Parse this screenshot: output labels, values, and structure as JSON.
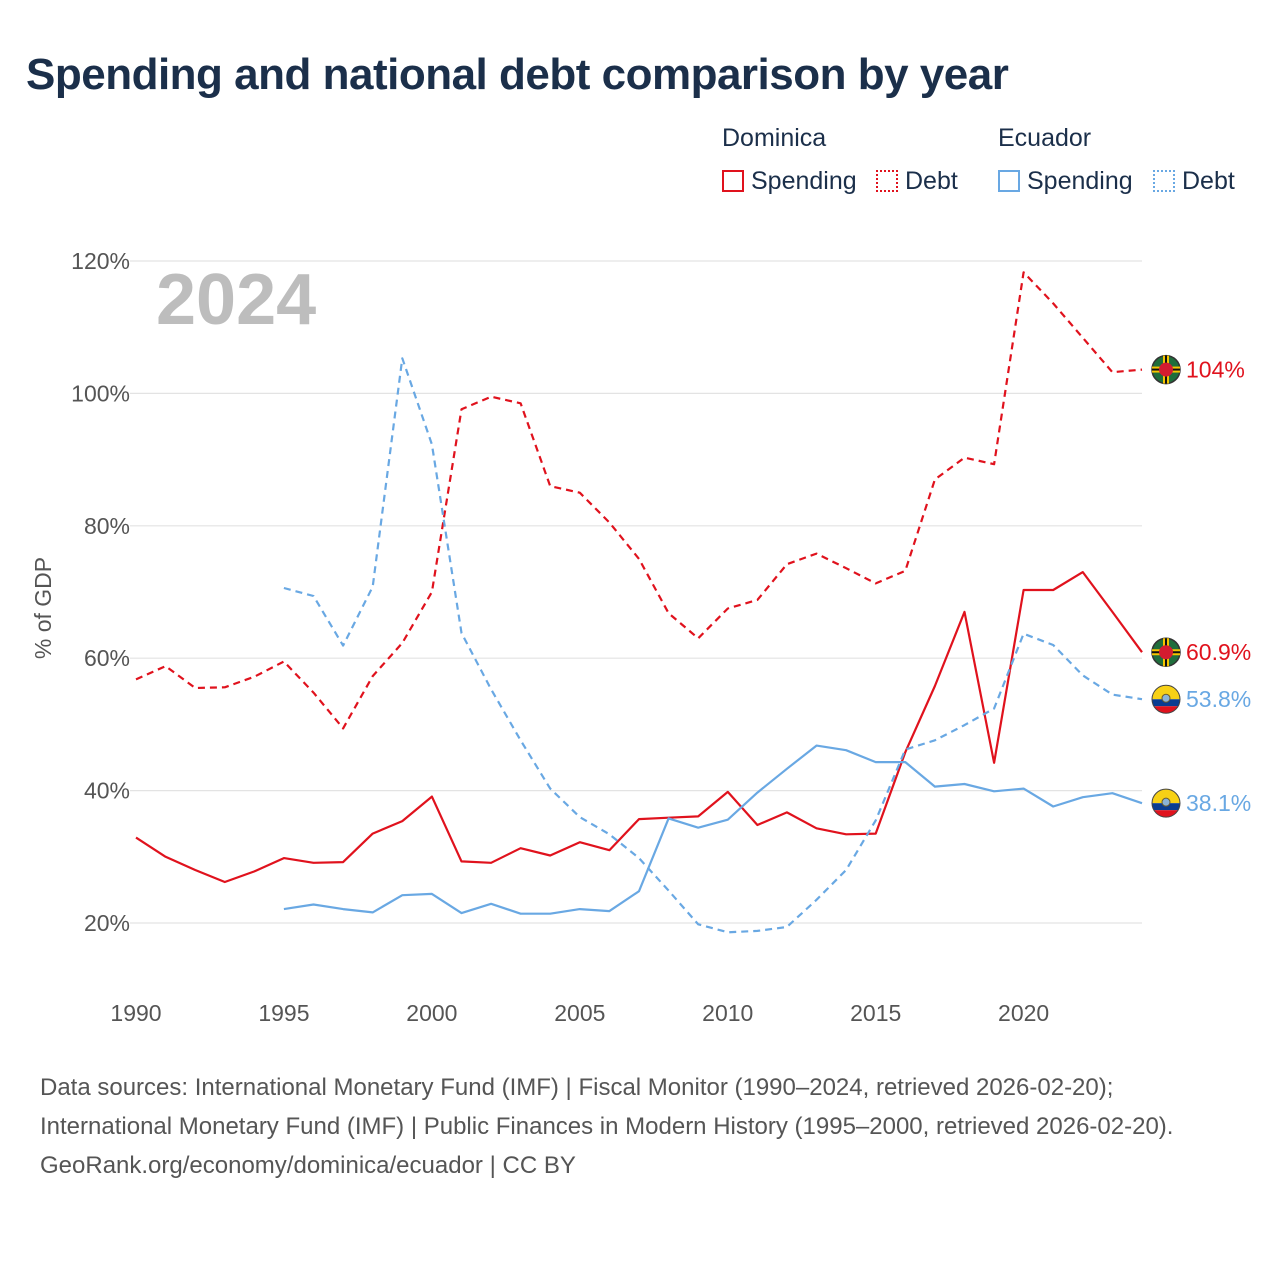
{
  "title": "Spending and national debt comparison by year",
  "legend": {
    "groups": [
      {
        "country": "Dominica",
        "items": [
          {
            "label": "Spending",
            "color": "#e0121d",
            "style": "solid"
          },
          {
            "label": "Debt",
            "color": "#e0121d",
            "style": "dotted"
          }
        ]
      },
      {
        "country": "Ecuador",
        "items": [
          {
            "label": "Spending",
            "color": "#69a8e3",
            "style": "solid"
          },
          {
            "label": "Debt",
            "color": "#69a8e3",
            "style": "dotted"
          }
        ]
      }
    ]
  },
  "chart_data": {
    "type": "line",
    "year_label": "2024",
    "ylabel": "% of GDP",
    "xlabel": "",
    "xlim": [
      1990,
      2024
    ],
    "ylim": [
      10,
      122
    ],
    "x_ticks": [
      1990,
      1995,
      2000,
      2005,
      2010,
      2015,
      2020
    ],
    "y_ticks": [
      20,
      40,
      60,
      80,
      100,
      120
    ],
    "y_tick_labels": [
      "20%",
      "40%",
      "60%",
      "80%",
      "100%",
      "120%"
    ],
    "grid": true,
    "series": [
      {
        "name": "Dominica Debt",
        "country": "Dominica",
        "metric": "Debt",
        "color": "#e0121d",
        "dash": "dashed",
        "end_label": "104%",
        "x": [
          1990,
          1991,
          1992,
          1993,
          1994,
          1995,
          1996,
          1997,
          1998,
          1999,
          2000,
          2001,
          2002,
          2003,
          2004,
          2005,
          2006,
          2007,
          2008,
          2009,
          2010,
          2011,
          2012,
          2013,
          2014,
          2015,
          2016,
          2017,
          2018,
          2019,
          2020,
          2021,
          2022,
          2023,
          2024
        ],
        "values": [
          56.8,
          58.8,
          55.5,
          55.6,
          57.2,
          59.5,
          54.8,
          49.4,
          57.3,
          62.3,
          70.0,
          97.6,
          99.5,
          98.5,
          86.0,
          85.0,
          80.5,
          75.0,
          66.8,
          63.0,
          67.5,
          68.8,
          74.2,
          75.8,
          73.6,
          71.3,
          73.2,
          87.0,
          90.3,
          89.3,
          118.3,
          113.6,
          108.4,
          103.2,
          103.6
        ]
      },
      {
        "name": "Dominica Spending",
        "country": "Dominica",
        "metric": "Spending",
        "color": "#e0121d",
        "dash": "solid",
        "end_label": "60.9%",
        "x": [
          1990,
          1991,
          1992,
          1993,
          1994,
          1995,
          1996,
          1997,
          1998,
          1999,
          2000,
          2001,
          2002,
          2003,
          2004,
          2005,
          2006,
          2007,
          2008,
          2009,
          2010,
          2011,
          2012,
          2013,
          2014,
          2015,
          2016,
          2017,
          2018,
          2019,
          2020,
          2021,
          2022,
          2023,
          2024
        ],
        "values": [
          32.9,
          30.0,
          28.0,
          26.2,
          27.8,
          29.8,
          29.1,
          29.2,
          33.5,
          35.4,
          39.1,
          29.3,
          29.1,
          31.3,
          30.2,
          32.2,
          31.0,
          35.7,
          35.9,
          36.1,
          39.8,
          34.8,
          36.7,
          34.3,
          33.4,
          33.5,
          45.8,
          55.8,
          67.0,
          44.2,
          70.3,
          70.3,
          73.0,
          67.0,
          60.9
        ]
      },
      {
        "name": "Ecuador Debt",
        "country": "Ecuador",
        "metric": "Debt",
        "color": "#69a8e3",
        "dash": "dashed",
        "end_label": "53.8%",
        "x": [
          1995,
          1996,
          1997,
          1998,
          1999,
          2000,
          2001,
          2002,
          2003,
          2004,
          2005,
          2006,
          2007,
          2008,
          2009,
          2010,
          2011,
          2012,
          2013,
          2014,
          2015,
          2016,
          2017,
          2018,
          2019,
          2020,
          2021,
          2022,
          2023,
          2024
        ],
        "values": [
          70.6,
          69.4,
          61.9,
          70.8,
          105.3,
          92.3,
          63.8,
          55.3,
          47.6,
          40.3,
          36.0,
          33.4,
          29.8,
          24.9,
          19.8,
          18.6,
          18.8,
          19.4,
          23.5,
          28.0,
          35.5,
          46.2,
          47.6,
          49.9,
          52.4,
          63.7,
          62.0,
          57.4,
          54.5,
          53.8
        ]
      },
      {
        "name": "Ecuador Spending",
        "country": "Ecuador",
        "metric": "Spending",
        "color": "#69a8e3",
        "dash": "solid",
        "end_label": "38.1%",
        "x": [
          1995,
          1996,
          1997,
          1998,
          1999,
          2000,
          2001,
          2002,
          2003,
          2004,
          2005,
          2006,
          2007,
          2008,
          2009,
          2010,
          2011,
          2012,
          2013,
          2014,
          2015,
          2016,
          2017,
          2018,
          2019,
          2020,
          2021,
          2022,
          2023,
          2024
        ],
        "values": [
          22.1,
          22.8,
          22.1,
          21.6,
          24.2,
          24.4,
          21.5,
          22.9,
          21.4,
          21.4,
          22.1,
          21.8,
          24.8,
          35.8,
          34.4,
          35.6,
          39.7,
          43.3,
          46.8,
          46.1,
          44.3,
          44.3,
          40.6,
          41.0,
          39.9,
          40.3,
          37.6,
          39.0,
          39.6,
          38.1
        ]
      }
    ]
  },
  "footer": {
    "sources": "Data sources: International Monetary Fund (IMF) | Fiscal Monitor (1990–2024, retrieved 2026-02-20); International Monetary Fund (IMF) | Public Finances in Modern History (1995–2000, retrieved 2026-02-20).",
    "credit": "GeoRank.org/economy/dominica/ecuador | CC BY"
  }
}
